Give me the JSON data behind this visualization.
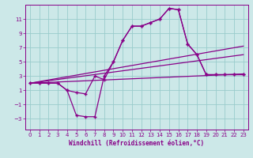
{
  "xlabel": "Windchill (Refroidissement éolien,°C)",
  "background_color": "#cce8e8",
  "grid_color": "#99cccc",
  "line_color": "#880088",
  "xlim": [
    -0.5,
    23.5
  ],
  "ylim": [
    -4.5,
    13
  ],
  "xticks": [
    0,
    1,
    2,
    3,
    4,
    5,
    6,
    7,
    8,
    9,
    10,
    11,
    12,
    13,
    14,
    15,
    16,
    17,
    18,
    19,
    20,
    21,
    22,
    23
  ],
  "yticks": [
    -3,
    -1,
    1,
    3,
    5,
    7,
    9,
    11
  ],
  "curve1_x": [
    0,
    1,
    2,
    3,
    4,
    5,
    6,
    7,
    8,
    9,
    10,
    11,
    12,
    13,
    14,
    15,
    16,
    17,
    18,
    19,
    20,
    21,
    22,
    23
  ],
  "curve1_y": [
    2,
    2,
    2,
    2,
    1,
    0.7,
    0.5,
    3,
    2.5,
    5,
    8,
    10,
    10,
    10.5,
    11,
    12.5,
    12.3,
    7.5,
    6,
    3.2,
    3.2,
    3.2,
    3.2,
    3.2
  ],
  "curve2_x": [
    0,
    1,
    2,
    3,
    4,
    5,
    6,
    7,
    8,
    9,
    10,
    11,
    12,
    13,
    14,
    15,
    16,
    17,
    18,
    19,
    20,
    21,
    22,
    23
  ],
  "curve2_y": [
    2,
    2,
    2,
    2,
    1,
    -2.5,
    -2.7,
    -2.7,
    3,
    5,
    8,
    10,
    10,
    10.5,
    11,
    12.5,
    12.3,
    7.5,
    6,
    3.2,
    3.2,
    3.2,
    3.2,
    3.2
  ],
  "reg1_x0": 0,
  "reg1_x1": 23,
  "reg1_y0": 2.0,
  "reg1_y1": 7.2,
  "reg2_x0": 0,
  "reg2_x1": 23,
  "reg2_y0": 2.0,
  "reg2_y1": 6.0,
  "reg3_x0": 0,
  "reg3_x1": 23,
  "reg3_y0": 2.0,
  "reg3_y1": 3.3
}
